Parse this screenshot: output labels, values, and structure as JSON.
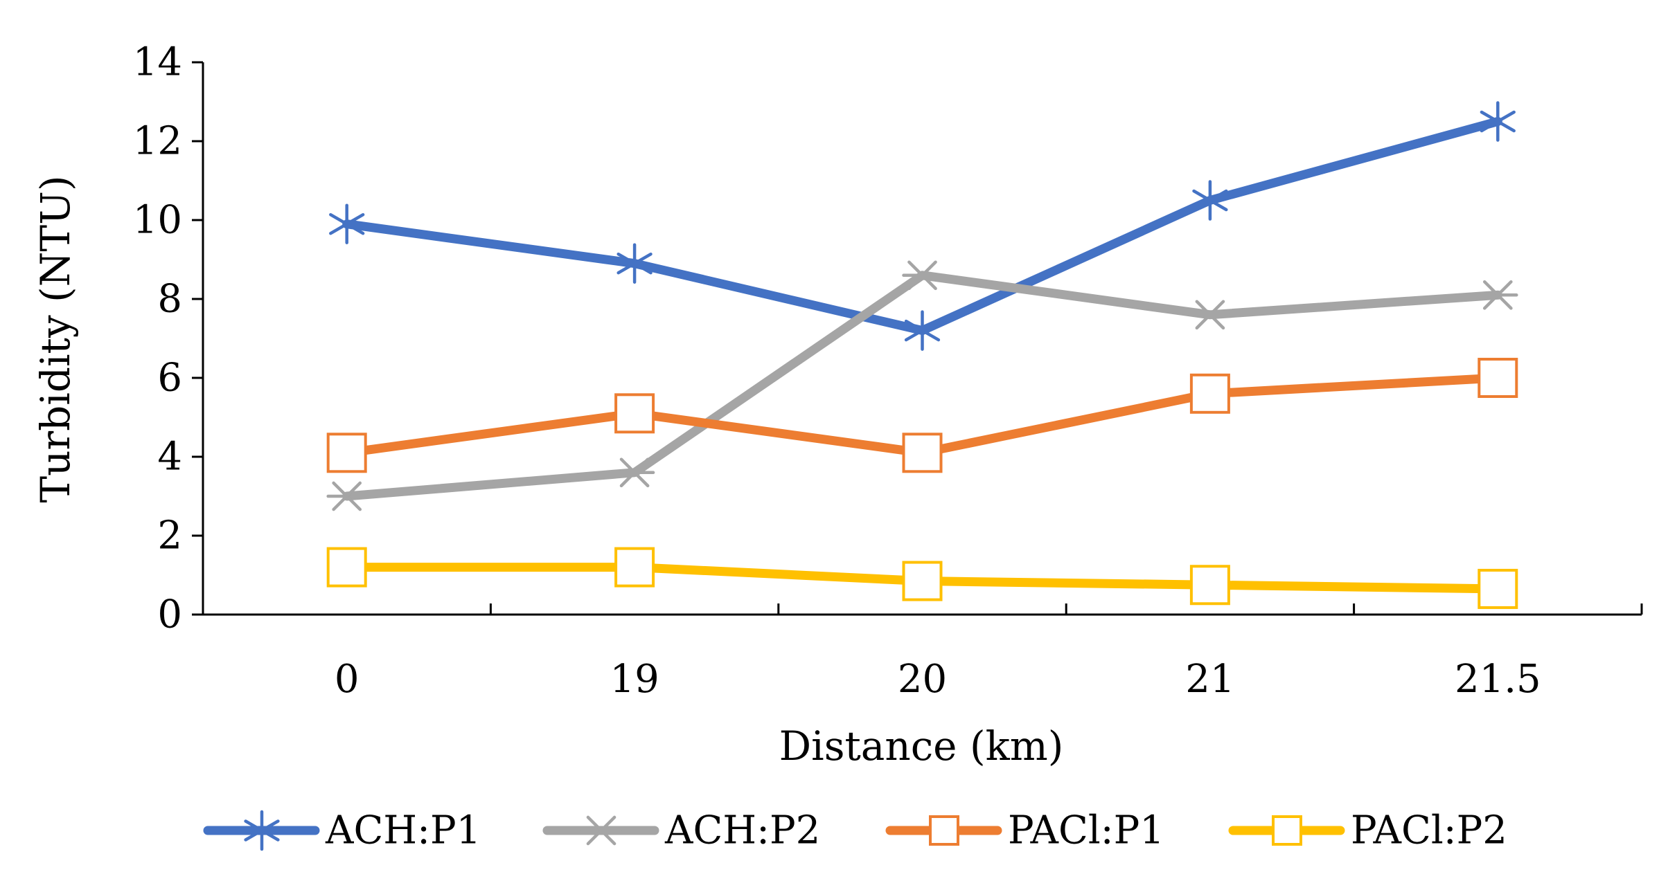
{
  "chart_data": {
    "type": "line",
    "title": "",
    "xlabel": "Distance (km)",
    "ylabel": "Turbidity (NTU)",
    "categories": [
      "0",
      "19",
      "20",
      "21",
      "21.5"
    ],
    "ylim": [
      0,
      14
    ],
    "yticks": [
      0,
      2,
      4,
      6,
      8,
      10,
      12,
      14
    ],
    "grid": false,
    "legend_position": "bottom",
    "series": [
      {
        "name": "ACH:P1",
        "color": "#4472C4",
        "marker": "asterisk",
        "values": [
          9.9,
          8.9,
          7.2,
          10.5,
          12.5
        ]
      },
      {
        "name": "ACH:P2",
        "color": "#A5A5A5",
        "marker": "x-star",
        "values": [
          3.0,
          3.6,
          8.6,
          7.6,
          8.1
        ]
      },
      {
        "name": "PACl:P1",
        "color": "#ED7D31",
        "marker": "square",
        "values": [
          4.1,
          5.1,
          4.1,
          5.6,
          6.0
        ]
      },
      {
        "name": "PACl:P2",
        "color": "#FFC000",
        "marker": "square",
        "values": [
          1.2,
          1.2,
          0.85,
          0.75,
          0.65
        ]
      }
    ]
  }
}
